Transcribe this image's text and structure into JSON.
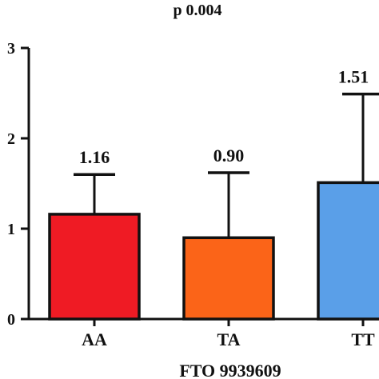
{
  "chart_data": {
    "type": "bar",
    "title": "p 0.004",
    "xlabel": "FTO 9939609",
    "ylabel": "",
    "ylim": [
      0,
      3
    ],
    "yticks": [
      "0",
      "1",
      "2",
      "3"
    ],
    "categories": [
      "AA",
      "TA",
      "TT"
    ],
    "values": [
      1.16,
      0.9,
      1.51
    ],
    "value_labels": [
      "1.16",
      "0.90",
      "1.51"
    ],
    "error_upper": [
      1.6,
      1.62,
      2.49
    ],
    "bar_colors": [
      "#ef1b24",
      "#fb6418",
      "#5a9fe8"
    ],
    "grid": false,
    "legend": "none"
  }
}
